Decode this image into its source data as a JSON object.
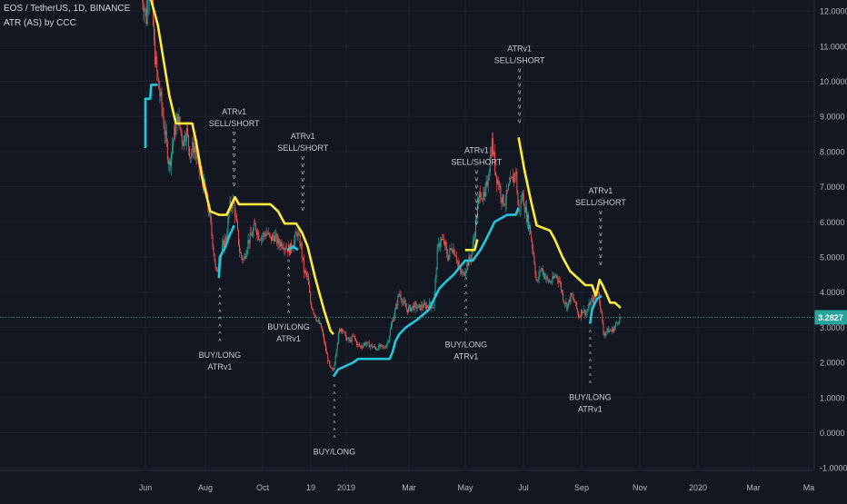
{
  "header": {
    "symbol_line": "EOS / TetherUS, 1D, BINANCE",
    "indicator_line": "ATR (AS) by CCC"
  },
  "colors": {
    "background": "#131722",
    "grid": "#1e2230",
    "axis_text": "#b2b5be",
    "candle_up": "#26a69a",
    "candle_down": "#ef5350",
    "stop_upper": "#ffeb3b",
    "stop_lower": "#26c6da",
    "price_line": "#26a69a",
    "price_tag_bg": "#26a69a",
    "label_text": "#c8cad0"
  },
  "price_tag": "3.2827",
  "chart_data": {
    "type": "candlestick",
    "x_ticks": [
      "Jun",
      "Aug",
      "Oct",
      "19",
      "2019",
      "Mar",
      "May",
      "Jul",
      "Sep",
      "Nov",
      "2020",
      "Mar",
      "Ma"
    ],
    "y_ticks": [
      "12.0000",
      "11.0000",
      "10.0000",
      "9.0000",
      "8.0000",
      "7.0000",
      "6.0000",
      "5.0000",
      "4.0000",
      "3.0000",
      "2.0000",
      "1.0000",
      "0.0000",
      "-1.0000"
    ],
    "ylim": [
      -1,
      12.4
    ],
    "last_price": 3.2827,
    "price_path": [
      [
        "2018-05-28",
        12.6
      ],
      [
        "2018-06-02",
        11.8
      ],
      [
        "2018-06-06",
        13.5
      ],
      [
        "2018-06-10",
        11.0
      ],
      [
        "2018-06-14",
        10.0
      ],
      [
        "2018-06-18",
        9.3
      ],
      [
        "2018-06-22",
        8.4
      ],
      [
        "2018-06-26",
        7.6
      ],
      [
        "2018-07-01",
        8.5
      ],
      [
        "2018-07-05",
        9.0
      ],
      [
        "2018-07-10",
        8.3
      ],
      [
        "2018-07-14",
        8.6
      ],
      [
        "2018-07-18",
        7.9
      ],
      [
        "2018-07-22",
        8.2
      ],
      [
        "2018-07-26",
        7.6
      ],
      [
        "2018-07-30",
        7.2
      ],
      [
        "2018-08-03",
        6.9
      ],
      [
        "2018-08-07",
        6.2
      ],
      [
        "2018-08-11",
        5.3
      ],
      [
        "2018-08-14",
        4.5
      ],
      [
        "2018-08-17",
        4.8
      ],
      [
        "2018-08-21",
        5.3
      ],
      [
        "2018-08-25",
        5.6
      ],
      [
        "2018-08-28",
        6.4
      ],
      [
        "2018-09-01",
        6.6
      ],
      [
        "2018-09-05",
        5.8
      ],
      [
        "2018-09-08",
        5.1
      ],
      [
        "2018-09-12",
        4.9
      ],
      [
        "2018-09-16",
        5.4
      ],
      [
        "2018-09-20",
        5.6
      ],
      [
        "2018-09-24",
        5.9
      ],
      [
        "2018-09-28",
        5.6
      ],
      [
        "2018-10-02",
        5.6
      ],
      [
        "2018-10-06",
        5.7
      ],
      [
        "2018-10-10",
        5.5
      ],
      [
        "2018-10-14",
        5.6
      ],
      [
        "2018-10-18",
        5.4
      ],
      [
        "2018-10-22",
        5.4
      ],
      [
        "2018-10-26",
        5.3
      ],
      [
        "2018-10-30",
        5.2
      ],
      [
        "2018-11-03",
        5.4
      ],
      [
        "2018-11-07",
        5.7
      ],
      [
        "2018-11-11",
        5.3
      ],
      [
        "2018-11-14",
        4.6
      ],
      [
        "2018-11-18",
        4.4
      ],
      [
        "2018-11-21",
        3.7
      ],
      [
        "2018-11-25",
        3.4
      ],
      [
        "2018-11-28",
        3.2
      ],
      [
        "2018-12-02",
        3.0
      ],
      [
        "2018-12-06",
        2.5
      ],
      [
        "2018-12-09",
        2.1
      ],
      [
        "2018-12-12",
        1.8
      ],
      [
        "2018-12-15",
        1.75
      ],
      [
        "2018-12-18",
        2.4
      ],
      [
        "2018-12-21",
        2.9
      ],
      [
        "2018-12-24",
        3.0
      ],
      [
        "2018-12-28",
        2.7
      ],
      [
        "2019-01-01",
        2.6
      ],
      [
        "2019-01-05",
        2.75
      ],
      [
        "2019-01-09",
        2.5
      ],
      [
        "2019-01-13",
        2.45
      ],
      [
        "2019-01-17",
        2.55
      ],
      [
        "2019-01-21",
        2.5
      ],
      [
        "2019-01-25",
        2.45
      ],
      [
        "2019-01-29",
        2.4
      ],
      [
        "2019-02-02",
        2.45
      ],
      [
        "2019-02-06",
        2.4
      ],
      [
        "2019-02-10",
        2.6
      ],
      [
        "2019-02-14",
        3.1
      ],
      [
        "2019-02-18",
        3.5
      ],
      [
        "2019-02-22",
        4.0
      ],
      [
        "2019-02-26",
        3.7
      ],
      [
        "2019-03-02",
        3.5
      ],
      [
        "2019-03-06",
        3.55
      ],
      [
        "2019-03-10",
        3.6
      ],
      [
        "2019-03-14",
        3.55
      ],
      [
        "2019-03-18",
        3.6
      ],
      [
        "2019-03-22",
        3.6
      ],
      [
        "2019-03-26",
        3.65
      ],
      [
        "2019-03-30",
        3.6
      ],
      [
        "2019-04-03",
        5.2
      ],
      [
        "2019-04-06",
        5.5
      ],
      [
        "2019-04-10",
        5.4
      ],
      [
        "2019-04-14",
        5.0
      ],
      [
        "2019-04-18",
        5.3
      ],
      [
        "2019-04-22",
        5.1
      ],
      [
        "2019-04-26",
        4.6
      ],
      [
        "2019-04-30",
        4.5
      ],
      [
        "2019-05-04",
        4.8
      ],
      [
        "2019-05-08",
        5.0
      ],
      [
        "2019-05-12",
        5.7
      ],
      [
        "2019-05-15",
        6.4
      ],
      [
        "2019-05-18",
        6.9
      ],
      [
        "2019-05-22",
        6.6
      ],
      [
        "2019-05-26",
        7.3
      ],
      [
        "2019-05-30",
        8.3
      ],
      [
        "2019-06-03",
        7.4
      ],
      [
        "2019-06-07",
        7.0
      ],
      [
        "2019-06-10",
        6.6
      ],
      [
        "2019-06-13",
        6.6
      ],
      [
        "2019-06-17",
        7.0
      ],
      [
        "2019-06-21",
        7.2
      ],
      [
        "2019-06-24",
        7.5
      ],
      [
        "2019-06-27",
        6.2
      ],
      [
        "2019-07-01",
        6.8
      ],
      [
        "2019-07-05",
        6.2
      ],
      [
        "2019-07-09",
        5.8
      ],
      [
        "2019-07-13",
        5.0
      ],
      [
        "2019-07-16",
        4.2
      ],
      [
        "2019-07-20",
        4.7
      ],
      [
        "2019-07-24",
        4.5
      ],
      [
        "2019-07-28",
        4.3
      ],
      [
        "2019-08-01",
        4.3
      ],
      [
        "2019-08-05",
        4.5
      ],
      [
        "2019-08-09",
        4.3
      ],
      [
        "2019-08-13",
        3.8
      ],
      [
        "2019-08-17",
        3.6
      ],
      [
        "2019-08-21",
        3.9
      ],
      [
        "2019-08-25",
        3.7
      ],
      [
        "2019-08-29",
        3.3
      ],
      [
        "2019-09-02",
        3.5
      ],
      [
        "2019-09-06",
        3.4
      ],
      [
        "2019-09-10",
        3.7
      ],
      [
        "2019-09-14",
        3.8
      ],
      [
        "2019-09-18",
        4.1
      ],
      [
        "2019-09-21",
        3.6
      ],
      [
        "2019-09-24",
        2.8
      ],
      [
        "2019-09-28",
        2.9
      ],
      [
        "2019-10-02",
        2.9
      ],
      [
        "2019-10-06",
        3.0
      ],
      [
        "2019-10-09",
        3.2
      ],
      [
        "2019-10-12",
        3.28
      ]
    ],
    "stop_upper": [
      [
        "2018-06-04",
        12.6
      ],
      [
        "2018-06-14",
        11.6
      ],
      [
        "2018-06-20",
        10.6
      ],
      [
        "2018-06-26",
        9.6
      ],
      [
        "2018-07-03",
        8.8
      ],
      [
        "2018-07-20",
        8.8
      ],
      [
        "2018-07-24",
        8.3
      ],
      [
        "2018-07-31",
        7.2
      ],
      [
        "2018-08-08",
        6.3
      ],
      [
        "2018-08-17",
        6.2
      ],
      [
        "2018-08-25",
        6.2
      ],
      [
        "2018-09-03",
        6.7
      ],
      [
        "2018-09-07",
        6.5
      ],
      [
        "2018-10-10",
        6.5
      ],
      [
        "2018-10-18",
        6.3
      ],
      [
        "2018-10-25",
        5.95
      ],
      [
        "2018-11-06",
        5.95
      ],
      [
        "2018-11-12",
        5.7
      ],
      [
        "2018-11-18",
        5.3
      ],
      [
        "2018-11-26",
        4.4
      ],
      [
        "2018-12-05",
        3.5
      ],
      [
        "2018-12-12",
        2.9
      ],
      [
        "2018-12-15",
        2.8
      ],
      null,
      [
        "2019-05-02",
        5.2
      ],
      [
        "2019-05-12",
        5.2
      ],
      [
        "2019-05-15",
        5.5
      ],
      null,
      [
        "2019-06-27",
        8.4
      ],
      [
        "2019-07-03",
        7.5
      ],
      [
        "2019-07-10",
        6.6
      ],
      [
        "2019-07-16",
        5.9
      ],
      [
        "2019-07-30",
        5.75
      ],
      [
        "2019-08-04",
        5.5
      ],
      [
        "2019-08-12",
        5.0
      ],
      [
        "2019-08-20",
        4.6
      ],
      [
        "2019-08-28",
        4.4
      ],
      [
        "2019-09-05",
        4.2
      ],
      [
        "2019-09-12",
        4.2
      ],
      [
        "2019-09-16",
        3.9
      ],
      [
        "2019-09-20",
        4.35
      ],
      [
        "2019-09-23",
        4.2
      ],
      [
        "2019-09-28",
        3.9
      ],
      [
        "2019-10-01",
        3.7
      ],
      [
        "2019-10-06",
        3.7
      ],
      [
        "2019-10-12",
        3.55
      ]
    ],
    "stop_lower": [
      [
        "2018-06-01",
        8.1
      ],
      [
        "2018-06-01",
        9.5
      ],
      [
        "2018-06-06",
        9.5
      ],
      [
        "2018-06-07",
        9.9
      ],
      [
        "2018-06-14",
        9.9
      ],
      null,
      [
        "2018-08-17",
        4.4
      ],
      [
        "2018-08-18",
        5.0
      ],
      [
        "2018-08-24",
        5.3
      ],
      [
        "2018-08-28",
        5.6
      ],
      [
        "2018-09-02",
        5.9
      ],
      null,
      [
        "2018-10-28",
        5.2
      ],
      [
        "2018-11-03",
        5.3
      ],
      [
        "2018-11-08",
        5.2
      ],
      null,
      [
        "2018-12-15",
        1.6
      ],
      [
        "2018-12-20",
        1.8
      ],
      [
        "2018-12-28",
        1.9
      ],
      [
        "2019-01-05",
        2.0
      ],
      [
        "2019-01-10",
        2.1
      ],
      [
        "2019-02-12",
        2.1
      ],
      [
        "2019-02-15",
        2.3
      ],
      [
        "2019-02-18",
        2.6
      ],
      [
        "2019-02-22",
        2.8
      ],
      [
        "2019-03-01",
        3.0
      ],
      [
        "2019-03-12",
        3.2
      ],
      [
        "2019-03-25",
        3.5
      ],
      [
        "2019-04-05",
        4.1
      ],
      [
        "2019-04-12",
        4.3
      ],
      [
        "2019-04-20",
        4.5
      ],
      [
        "2019-05-02",
        4.9
      ],
      [
        "2019-05-10",
        4.9
      ],
      [
        "2019-05-18",
        5.2
      ],
      [
        "2019-05-24",
        5.5
      ],
      [
        "2019-06-02",
        6.0
      ],
      [
        "2019-06-15",
        6.2
      ],
      [
        "2019-06-24",
        6.2
      ],
      [
        "2019-06-27",
        6.4
      ],
      null,
      [
        "2019-09-10",
        3.1
      ],
      [
        "2019-09-12",
        3.5
      ],
      [
        "2019-09-17",
        3.8
      ],
      [
        "2019-09-22",
        3.9
      ]
    ],
    "signals": [
      {
        "type": "sell",
        "date": "2018-09-02",
        "price": 6.6,
        "line1": "ATRv1",
        "line2": "SELL/SHORT"
      },
      {
        "type": "sell",
        "date": "2018-11-13",
        "price": 5.9,
        "line1": "ATRv1",
        "line2": "SELL/SHORT"
      },
      {
        "type": "sell",
        "date": "2019-05-14",
        "price": 5.5,
        "line1": "ATRv1",
        "line2": "SELL/SHORT"
      },
      {
        "type": "sell",
        "date": "2019-06-28",
        "price": 8.4,
        "line1": "ATRv1",
        "line2": "SELL/SHORT"
      },
      {
        "type": "sell",
        "date": "2019-09-21",
        "price": 4.35,
        "line1": "ATRv1",
        "line2": "SELL/SHORT"
      },
      {
        "type": "buy",
        "date": "2018-08-18",
        "price": 4.3,
        "line1": "BUY/LONG",
        "line2": "ATRv1"
      },
      {
        "type": "buy",
        "date": "2018-10-29",
        "price": 5.1,
        "line1": "BUY/LONG",
        "line2": "ATRv1"
      },
      {
        "type": "buy",
        "date": "2018-12-16",
        "price": 1.55,
        "line1": "BUY/LONG",
        "line2": ""
      },
      {
        "type": "buy",
        "date": "2019-05-03",
        "price": 4.6,
        "line1": "BUY/LONG",
        "line2": "ATRv1"
      },
      {
        "type": "buy",
        "date": "2019-09-10",
        "price": 3.1,
        "line1": "BUY/LONG",
        "line2": "ATRv1"
      }
    ]
  }
}
